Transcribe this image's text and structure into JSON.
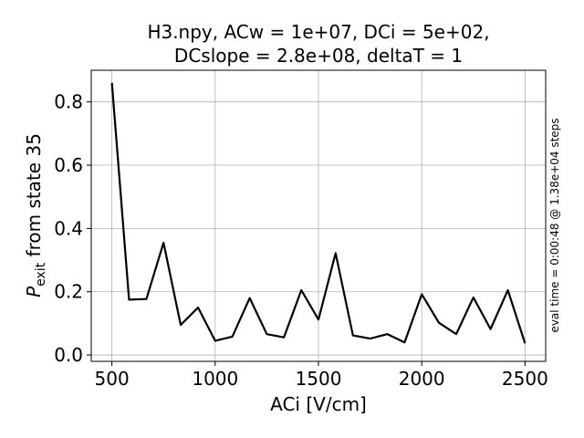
{
  "chart_data": {
    "type": "line",
    "title_line1": "H3.npy, ACw = 1e+07,  DCi = 5e+02,",
    "title_line2": "DCslope = 2.8e+08,  deltaT = 1",
    "xlabel": "ACi [V/cm]",
    "ylabel_prefix": "P",
    "ylabel_subscript": "exit",
    "ylabel_suffix": " from state 35",
    "side_note": "eval time = 0:00:48 @ 1.38e+04 steps",
    "xlim": [
      400,
      2600
    ],
    "ylim": [
      -0.02,
      0.9
    ],
    "xticks": [
      500,
      1000,
      1500,
      2000,
      2500
    ],
    "yticks": [
      0.0,
      0.2,
      0.4,
      0.6,
      0.8
    ],
    "ytick_labels": [
      "0.0",
      "0.2",
      "0.4",
      "0.6",
      "0.8"
    ],
    "grid": true,
    "series": [
      {
        "color": "#000000",
        "x": [
          500,
          583,
          667,
          750,
          833,
          917,
          1000,
          1083,
          1167,
          1250,
          1333,
          1417,
          1500,
          1583,
          1667,
          1750,
          1833,
          1917,
          2000,
          2083,
          2167,
          2250,
          2333,
          2417,
          2500
        ],
        "y": [
          0.86,
          0.175,
          0.177,
          0.355,
          0.095,
          0.15,
          0.045,
          0.058,
          0.18,
          0.066,
          0.056,
          0.205,
          0.112,
          0.322,
          0.062,
          0.052,
          0.066,
          0.04,
          0.192,
          0.102,
          0.066,
          0.182,
          0.082,
          0.205,
          0.037
        ]
      }
    ]
  }
}
